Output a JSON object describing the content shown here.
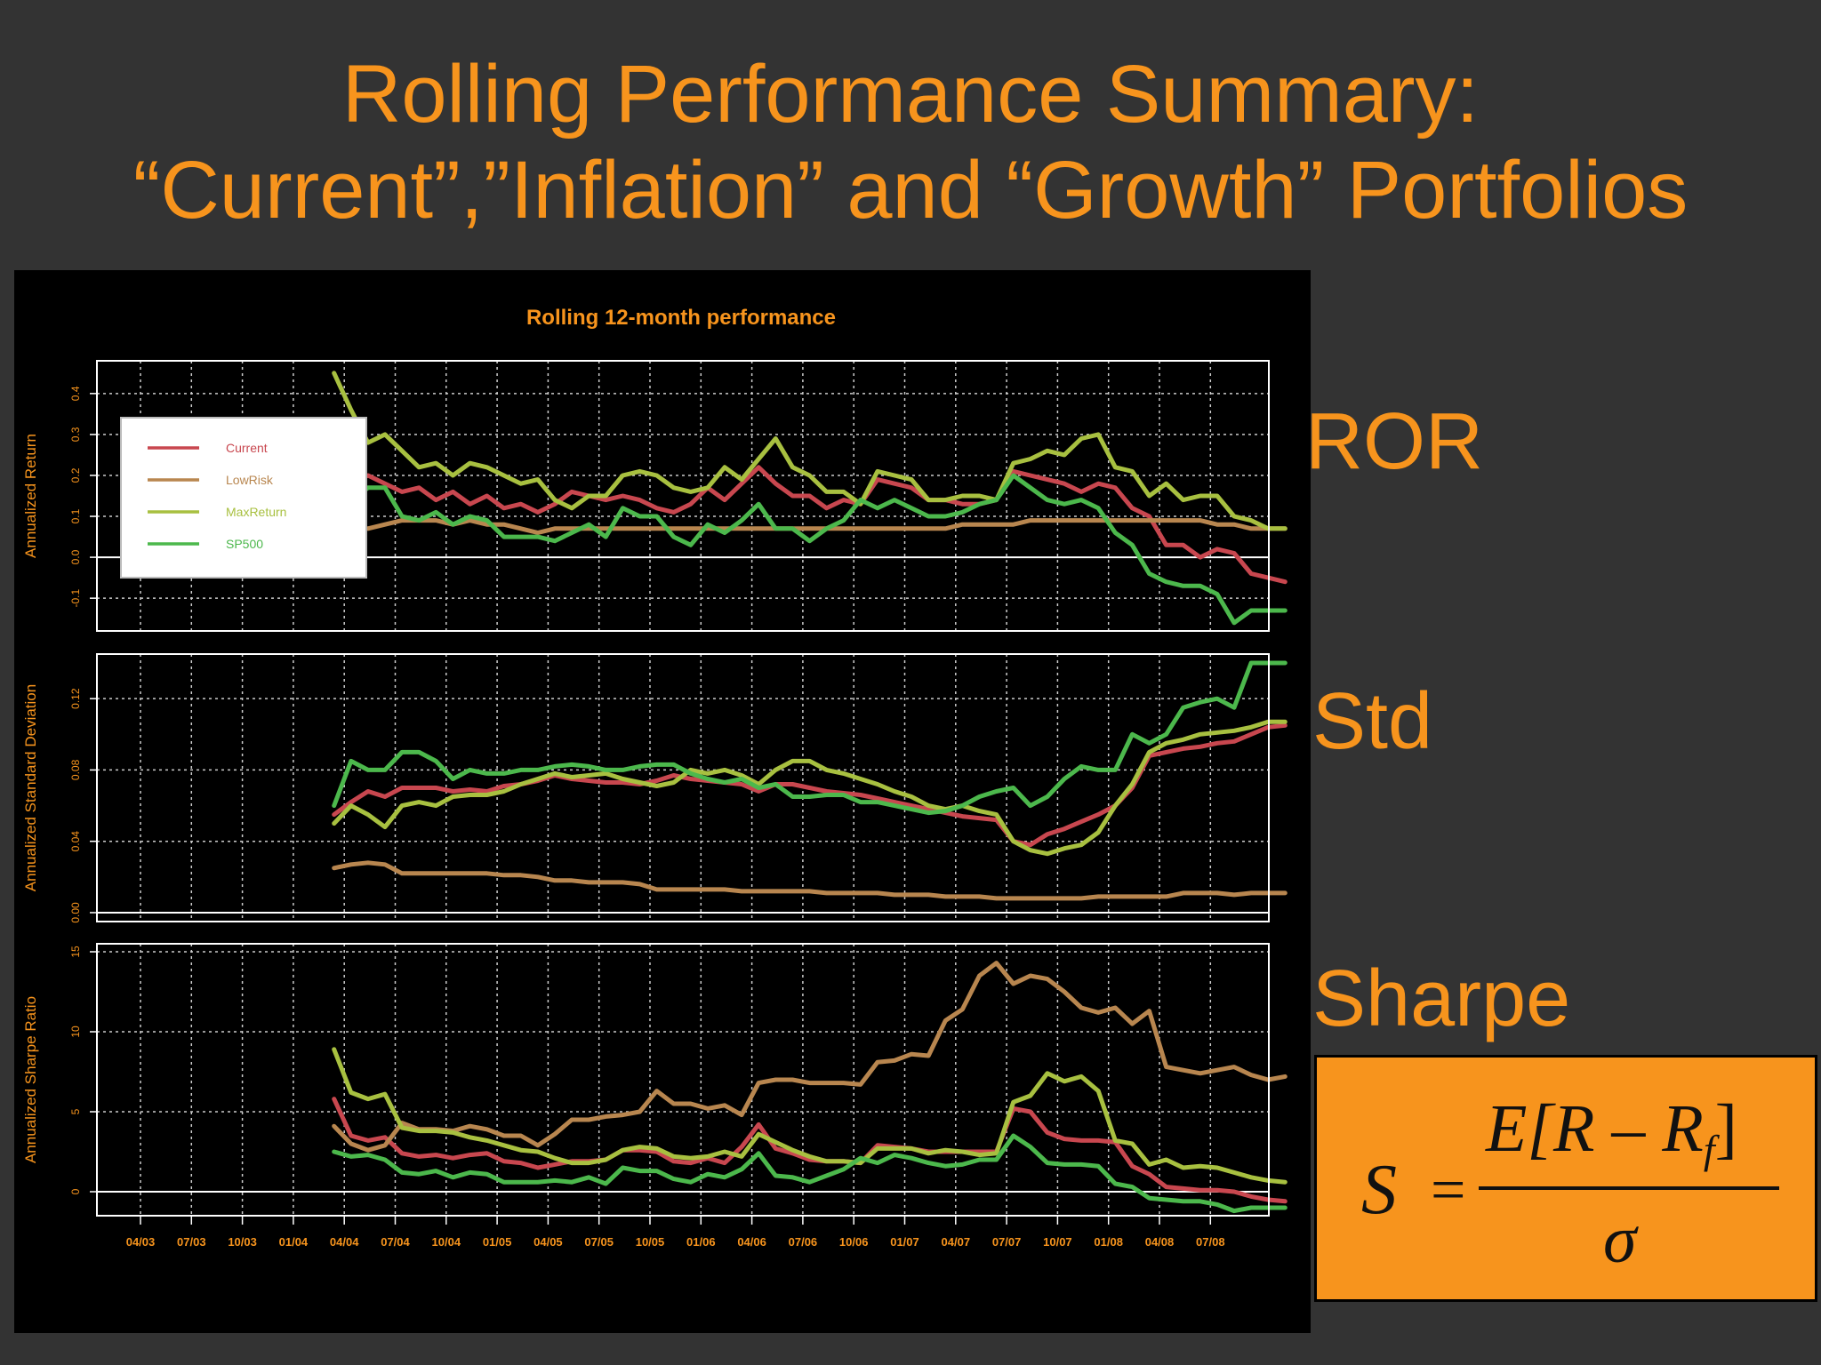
{
  "slide": {
    "title_line1": "Rolling Performance Summary:",
    "title_line2": "“Current”,”Inflation” and “Growth” Portfolios",
    "labels": {
      "ror": "ROR",
      "std": "Std",
      "sharpe": "Sharpe"
    },
    "formula": {
      "lhs": "S",
      "eq": "=",
      "numerator": "E[R – R",
      "numerator_sub": "f",
      "numerator_close": "]",
      "denominator": "σ"
    }
  },
  "colors": {
    "background": "#333333",
    "accent": "#f7941d",
    "Current": "#c8474f",
    "LowRisk": "#b8864f",
    "MaxReturn": "#a8c040",
    "SP500": "#4cb84c"
  },
  "chart_data": {
    "type": "line",
    "title": "Rolling 12-month performance",
    "x_tick_labels": [
      "04/03",
      "07/03",
      "10/03",
      "01/04",
      "04/04",
      "07/04",
      "10/04",
      "01/05",
      "04/05",
      "07/05",
      "10/05",
      "01/06",
      "04/06",
      "07/06",
      "10/06",
      "01/07",
      "04/07",
      "07/07",
      "10/07",
      "01/08",
      "04/08",
      "07/08"
    ],
    "x_start": "04/03",
    "series_order": [
      "Current",
      "LowRisk",
      "MaxReturn",
      "SP500"
    ],
    "legend": {
      "placement": "top-left",
      "entries": [
        "Current",
        "LowRisk",
        "MaxReturn",
        "SP500"
      ]
    },
    "grid": true,
    "panels": [
      {
        "id": "ror",
        "ylabel": "Annualized Return",
        "ylim": [
          -0.18,
          0.48
        ],
        "yticks": [
          -0.1,
          0.0,
          0.1,
          0.2,
          0.3,
          0.4
        ],
        "ytick_labels": [
          "-0.1",
          "0.0",
          "0.1",
          "0.2",
          "0.3",
          "0.4"
        ],
        "series": [
          {
            "name": "Current",
            "values": [
              0.19,
              0.18,
              0.2,
              0.18,
              0.16,
              0.17,
              0.14,
              0.16,
              0.13,
              0.15,
              0.12,
              0.13,
              0.11,
              0.13,
              0.16,
              0.15,
              0.14,
              0.15,
              0.14,
              0.12,
              0.11,
              0.13,
              0.17,
              0.14,
              0.18,
              0.22,
              0.18,
              0.15,
              0.15,
              0.12,
              0.14,
              0.13,
              0.19,
              0.18,
              0.17,
              0.14,
              0.14,
              0.13,
              0.13,
              0.14,
              0.21,
              0.2,
              0.19,
              0.18,
              0.16,
              0.18,
              0.17,
              0.12,
              0.1,
              0.03,
              0.03,
              0.0,
              0.02,
              0.01,
              -0.04,
              -0.05,
              -0.06
            ]
          },
          {
            "name": "LowRisk",
            "values": [
              0.06,
              0.07,
              0.07,
              0.08,
              0.09,
              0.09,
              0.09,
              0.08,
              0.09,
              0.08,
              0.08,
              0.07,
              0.06,
              0.07,
              0.07,
              0.07,
              0.07,
              0.07,
              0.07,
              0.07,
              0.07,
              0.07,
              0.07,
              0.07,
              0.07,
              0.07,
              0.07,
              0.07,
              0.07,
              0.07,
              0.07,
              0.07,
              0.07,
              0.07,
              0.07,
              0.07,
              0.07,
              0.08,
              0.08,
              0.08,
              0.08,
              0.09,
              0.09,
              0.09,
              0.09,
              0.09,
              0.09,
              0.09,
              0.09,
              0.09,
              0.09,
              0.09,
              0.08,
              0.08,
              0.07,
              0.07,
              0.07
            ]
          },
          {
            "name": "MaxReturn",
            "values": [
              0.45,
              0.36,
              0.28,
              0.3,
              0.26,
              0.22,
              0.23,
              0.2,
              0.23,
              0.22,
              0.2,
              0.18,
              0.19,
              0.14,
              0.12,
              0.15,
              0.15,
              0.2,
              0.21,
              0.2,
              0.17,
              0.16,
              0.17,
              0.22,
              0.19,
              0.24,
              0.29,
              0.22,
              0.2,
              0.16,
              0.16,
              0.13,
              0.21,
              0.2,
              0.19,
              0.14,
              0.14,
              0.15,
              0.15,
              0.14,
              0.23,
              0.24,
              0.26,
              0.25,
              0.29,
              0.3,
              0.22,
              0.21,
              0.15,
              0.18,
              0.14,
              0.15,
              0.15,
              0.1,
              0.09,
              0.07,
              0.07
            ]
          },
          {
            "name": "SP500",
            "values": [
              0.14,
              0.14,
              0.17,
              0.17,
              0.1,
              0.09,
              0.11,
              0.08,
              0.1,
              0.09,
              0.05,
              0.05,
              0.05,
              0.04,
              0.06,
              0.08,
              0.05,
              0.12,
              0.1,
              0.1,
              0.05,
              0.03,
              0.08,
              0.06,
              0.09,
              0.13,
              0.07,
              0.07,
              0.04,
              0.07,
              0.09,
              0.14,
              0.12,
              0.14,
              0.12,
              0.1,
              0.1,
              0.11,
              0.13,
              0.14,
              0.2,
              0.17,
              0.14,
              0.13,
              0.14,
              0.12,
              0.06,
              0.03,
              -0.04,
              -0.06,
              -0.07,
              -0.07,
              -0.09,
              -0.16,
              -0.13,
              -0.13,
              -0.13
            ]
          }
        ]
      },
      {
        "id": "std",
        "ylabel": "Annualized Standard Deviation",
        "ylim": [
          -0.005,
          0.145
        ],
        "yticks": [
          0.0,
          0.04,
          0.08,
          0.12
        ],
        "ytick_labels": [
          "0.00",
          "0.04",
          "0.08",
          "0.12"
        ],
        "series": [
          {
            "name": "Current",
            "values": [
              0.055,
              0.062,
              0.068,
              0.065,
              0.07,
              0.07,
              0.07,
              0.068,
              0.069,
              0.068,
              0.071,
              0.072,
              0.074,
              0.077,
              0.075,
              0.074,
              0.073,
              0.073,
              0.072,
              0.074,
              0.077,
              0.075,
              0.074,
              0.073,
              0.072,
              0.068,
              0.072,
              0.072,
              0.07,
              0.068,
              0.067,
              0.066,
              0.064,
              0.062,
              0.06,
              0.058,
              0.056,
              0.054,
              0.053,
              0.052,
              0.04,
              0.038,
              0.044,
              0.047,
              0.051,
              0.055,
              0.06,
              0.07,
              0.088,
              0.09,
              0.092,
              0.093,
              0.095,
              0.096,
              0.1,
              0.104,
              0.105
            ]
          },
          {
            "name": "LowRisk",
            "values": [
              0.025,
              0.027,
              0.028,
              0.027,
              0.022,
              0.022,
              0.022,
              0.022,
              0.022,
              0.022,
              0.021,
              0.021,
              0.02,
              0.018,
              0.018,
              0.017,
              0.017,
              0.017,
              0.016,
              0.013,
              0.013,
              0.013,
              0.013,
              0.013,
              0.012,
              0.012,
              0.012,
              0.012,
              0.012,
              0.011,
              0.011,
              0.011,
              0.011,
              0.01,
              0.01,
              0.01,
              0.009,
              0.009,
              0.009,
              0.008,
              0.008,
              0.008,
              0.008,
              0.008,
              0.008,
              0.009,
              0.009,
              0.009,
              0.009,
              0.009,
              0.011,
              0.011,
              0.011,
              0.01,
              0.011,
              0.011,
              0.011
            ]
          },
          {
            "name": "MaxReturn",
            "values": [
              0.05,
              0.06,
              0.055,
              0.048,
              0.06,
              0.062,
              0.06,
              0.065,
              0.066,
              0.066,
              0.068,
              0.072,
              0.075,
              0.078,
              0.076,
              0.077,
              0.078,
              0.075,
              0.073,
              0.071,
              0.073,
              0.08,
              0.078,
              0.08,
              0.077,
              0.072,
              0.08,
              0.085,
              0.085,
              0.08,
              0.078,
              0.075,
              0.072,
              0.068,
              0.065,
              0.06,
              0.058,
              0.06,
              0.057,
              0.055,
              0.04,
              0.035,
              0.033,
              0.036,
              0.038,
              0.045,
              0.06,
              0.072,
              0.09,
              0.095,
              0.097,
              0.1,
              0.101,
              0.102,
              0.104,
              0.107,
              0.107
            ]
          },
          {
            "name": "SP500",
            "values": [
              0.06,
              0.085,
              0.08,
              0.08,
              0.09,
              0.09,
              0.085,
              0.075,
              0.08,
              0.078,
              0.078,
              0.08,
              0.08,
              0.082,
              0.083,
              0.082,
              0.08,
              0.08,
              0.082,
              0.083,
              0.083,
              0.078,
              0.075,
              0.073,
              0.075,
              0.07,
              0.072,
              0.065,
              0.065,
              0.066,
              0.066,
              0.062,
              0.062,
              0.06,
              0.058,
              0.056,
              0.057,
              0.06,
              0.065,
              0.068,
              0.07,
              0.06,
              0.065,
              0.075,
              0.082,
              0.08,
              0.08,
              0.1,
              0.095,
              0.1,
              0.115,
              0.118,
              0.12,
              0.115,
              0.14,
              0.14,
              0.14
            ]
          }
        ]
      },
      {
        "id": "sharpe",
        "ylabel": "Annualized Sharpe Ratio",
        "ylim": [
          -1.5,
          15.5
        ],
        "yticks": [
          0,
          5,
          10,
          15
        ],
        "ytick_labels": [
          "0",
          "5",
          "10",
          "15"
        ],
        "series": [
          {
            "name": "Current",
            "values": [
              5.8,
              3.5,
              3.2,
              3.4,
              2.4,
              2.2,
              2.3,
              2.1,
              2.3,
              2.4,
              1.9,
              1.8,
              1.5,
              1.7,
              1.9,
              1.9,
              2.0,
              2.6,
              2.6,
              2.5,
              1.9,
              1.8,
              2.1,
              1.8,
              2.8,
              4.2,
              2.7,
              2.4,
              2.0,
              1.9,
              1.9,
              1.8,
              2.9,
              2.8,
              2.7,
              2.5,
              2.5,
              2.5,
              2.5,
              2.5,
              5.2,
              5.0,
              3.7,
              3.3,
              3.2,
              3.2,
              3.1,
              1.6,
              1.1,
              0.3,
              0.2,
              0.1,
              0.1,
              0.0,
              -0.3,
              -0.5,
              -0.6
            ]
          },
          {
            "name": "LowRisk",
            "values": [
              4.1,
              3.0,
              2.6,
              2.9,
              4.3,
              3.9,
              3.9,
              3.8,
              4.1,
              3.9,
              3.5,
              3.5,
              2.9,
              3.6,
              4.5,
              4.5,
              4.7,
              4.8,
              5.0,
              6.3,
              5.5,
              5.5,
              5.2,
              5.4,
              4.8,
              6.8,
              7.0,
              7.0,
              6.8,
              6.8,
              6.8,
              6.7,
              8.1,
              8.2,
              8.6,
              8.5,
              10.7,
              11.4,
              13.5,
              14.3,
              13.0,
              13.5,
              13.3,
              12.5,
              11.5,
              11.2,
              11.5,
              10.5,
              11.3,
              7.8,
              7.6,
              7.4,
              7.6,
              7.8,
              7.3,
              7.0,
              7.2
            ]
          },
          {
            "name": "MaxReturn",
            "values": [
              8.9,
              6.2,
              5.8,
              6.1,
              4.0,
              3.8,
              3.8,
              3.7,
              3.4,
              3.2,
              2.9,
              2.6,
              2.5,
              2.1,
              1.8,
              1.8,
              2.0,
              2.6,
              2.8,
              2.7,
              2.2,
              2.1,
              2.2,
              2.5,
              2.2,
              3.6,
              3.1,
              2.6,
              2.2,
              1.9,
              1.9,
              1.8,
              2.7,
              2.7,
              2.7,
              2.4,
              2.6,
              2.5,
              2.3,
              2.4,
              5.6,
              6.0,
              7.4,
              6.9,
              7.2,
              6.3,
              3.2,
              3.0,
              1.7,
              2.0,
              1.5,
              1.6,
              1.5,
              1.2,
              0.9,
              0.7,
              0.6
            ]
          },
          {
            "name": "SP500",
            "values": [
              2.5,
              2.2,
              2.3,
              2.0,
              1.2,
              1.1,
              1.3,
              0.9,
              1.2,
              1.1,
              0.6,
              0.6,
              0.6,
              0.7,
              0.6,
              0.9,
              0.5,
              1.5,
              1.3,
              1.3,
              0.8,
              0.6,
              1.1,
              0.9,
              1.4,
              2.4,
              1.0,
              0.9,
              0.6,
              1.0,
              1.4,
              2.1,
              1.8,
              2.3,
              2.1,
              1.8,
              1.6,
              1.7,
              2.0,
              2.0,
              3.5,
              2.8,
              1.8,
              1.7,
              1.7,
              1.6,
              0.5,
              0.3,
              -0.4,
              -0.5,
              -0.6,
              -0.6,
              -0.8,
              -1.2,
              -1.0,
              -1.0,
              -1.0
            ]
          }
        ]
      }
    ]
  }
}
